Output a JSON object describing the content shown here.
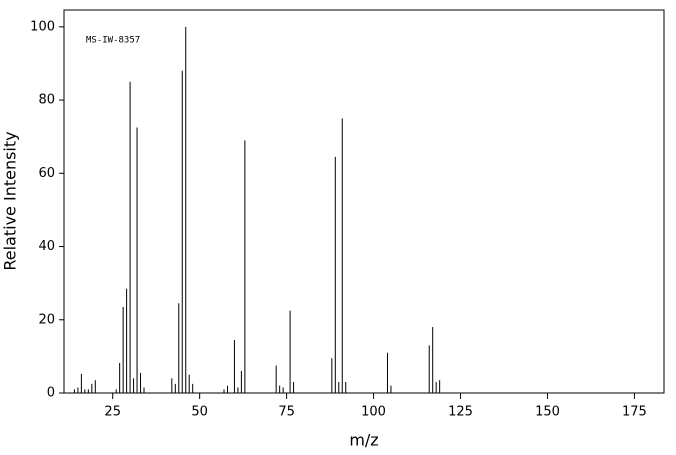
{
  "chart_data": {
    "type": "bar",
    "annotation": "MS-IW-8357",
    "x_label": "m/z",
    "y_label": "Relative Intensity",
    "color": "#000000",
    "x": [
      14,
      15,
      16,
      17,
      18,
      19,
      20,
      26,
      27,
      28,
      29,
      30,
      31,
      32,
      33,
      34,
      42,
      43,
      44,
      45,
      46,
      47,
      48,
      57,
      58,
      60,
      61,
      62,
      63,
      72,
      73,
      74,
      76,
      77,
      88,
      89,
      90,
      91,
      92,
      104,
      105,
      116,
      117,
      118,
      119
    ],
    "values": [
      1,
      1.5,
      5.2,
      1,
      1,
      2.5,
      3.5,
      1,
      8.2,
      23.5,
      28.5,
      85,
      4,
      72.5,
      5.5,
      1.5,
      4,
      2.5,
      24.5,
      88,
      100,
      5,
      2.5,
      1,
      2,
      14.5,
      1.5,
      6,
      69,
      7.5,
      2,
      1.5,
      22.5,
      3,
      9.5,
      64.5,
      3,
      75,
      3,
      11,
      2,
      13,
      18,
      3,
      3.5
    ],
    "xlim": [
      11,
      183.5
    ],
    "ylim": [
      0,
      104.6
    ],
    "xticks": [
      25,
      50,
      75,
      100,
      125,
      150,
      175
    ],
    "yticks": [
      0,
      20,
      40,
      60,
      80,
      100
    ]
  }
}
